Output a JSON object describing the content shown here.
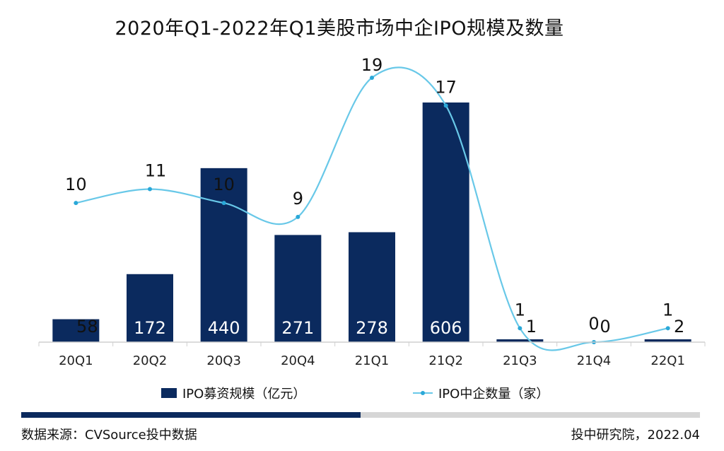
{
  "chart_data": {
    "type": "bar",
    "title": "2020年Q1-2022年Q1美股市场中企IPO规模及数量",
    "categories": [
      "20Q1",
      "20Q2",
      "20Q3",
      "20Q4",
      "21Q1",
      "21Q2",
      "21Q3",
      "21Q4",
      "22Q1"
    ],
    "series": [
      {
        "name": "IPO募资规模（亿元）",
        "type": "bar",
        "color": "#0b2a5e",
        "values": [
          58,
          172,
          440,
          271,
          278,
          606,
          1,
          0,
          2
        ]
      },
      {
        "name": "IPO中企数量（家）",
        "type": "line",
        "color": "#68c8e8",
        "values": [
          10,
          11,
          10,
          9,
          19,
          17,
          1,
          0,
          1
        ]
      }
    ],
    "grid": false,
    "legend_position": "bottom"
  },
  "footer": {
    "source": "数据来源：CVSource投中数据",
    "credit": "投中研究院，2022.04"
  },
  "progress": {
    "fraction": 0.5
  }
}
